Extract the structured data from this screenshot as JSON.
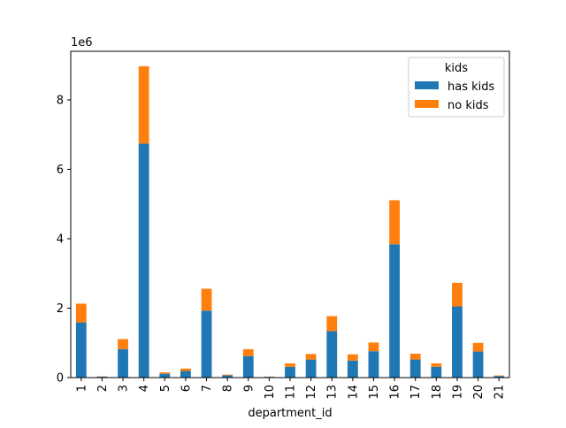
{
  "chart_data": {
    "type": "bar",
    "stacked": true,
    "title": "",
    "xlabel": "department_id",
    "ylabel": "",
    "y_scale_label": "1e6",
    "ylim": [
      0,
      9400000
    ],
    "yticks": [
      0,
      2000000,
      4000000,
      6000000,
      8000000
    ],
    "ytick_labels": [
      "0",
      "2",
      "4",
      "6",
      "8"
    ],
    "grid": false,
    "legend_title": "kids",
    "legend_position": "top-right",
    "categories": [
      "1",
      "2",
      "3",
      "4",
      "5",
      "6",
      "7",
      "8",
      "9",
      "10",
      "11",
      "12",
      "13",
      "14",
      "15",
      "16",
      "17",
      "18",
      "19",
      "20",
      "21"
    ],
    "series": [
      {
        "name": "has kids",
        "color": "#1f77b4",
        "values": [
          1590000,
          25000,
          820000,
          6740000,
          110000,
          190000,
          1930000,
          65000,
          620000,
          22000,
          310000,
          520000,
          1340000,
          490000,
          760000,
          3840000,
          520000,
          310000,
          2050000,
          750000,
          45000
        ]
      },
      {
        "name": "no kids",
        "color": "#ff7f0e",
        "values": [
          540000,
          10000,
          290000,
          2230000,
          40000,
          70000,
          630000,
          20000,
          200000,
          8000,
          100000,
          160000,
          430000,
          180000,
          250000,
          1270000,
          170000,
          100000,
          680000,
          250000,
          15000
        ]
      }
    ]
  }
}
